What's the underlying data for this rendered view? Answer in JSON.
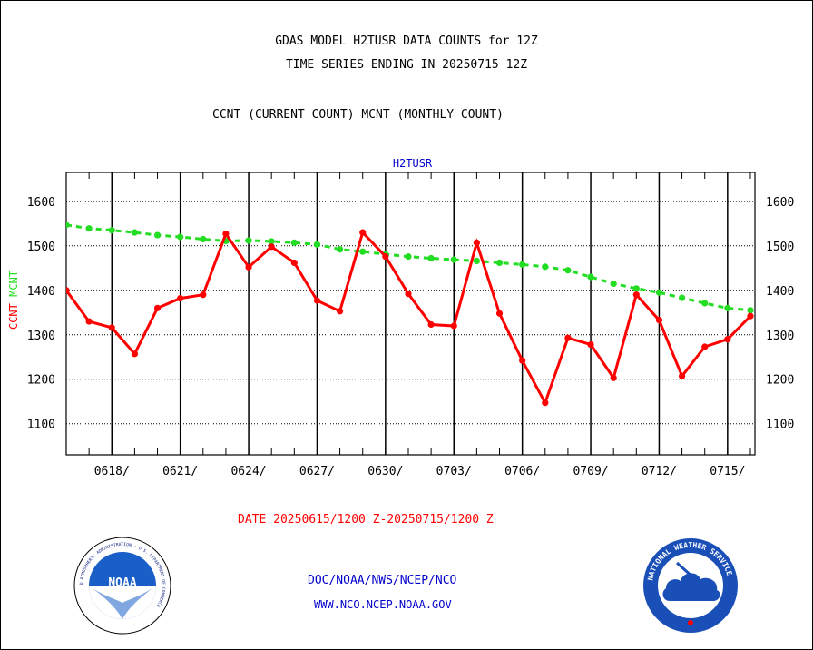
{
  "titles": {
    "line1": "GDAS MODEL H2TUSR DATA COUNTS for 12Z",
    "line2": "TIME SERIES ENDING IN 20250715 12Z",
    "line3": "CCNT (CURRENT COUNT) MCNT (MONTHLY COUNT)"
  },
  "date_range": "DATE 20250615/1200 Z-20250715/1200 Z",
  "footer": {
    "org": "DOC/NOAA/NWS/NCEP/NCO",
    "url": "WWW.NCO.NCEP.NOAA.GOV"
  },
  "logos": {
    "noaa_text": "NOAA",
    "noaa_ring": "NATIONAL OCEANIC AND ATMOSPHERIC ADMINISTRATION · U.S. DEPARTMENT OF COMMERCE",
    "nws_ring": "NATIONAL WEATHER SERVICE"
  },
  "colors": {
    "ccnt": "#ff0000",
    "mcnt": "#22dd22",
    "title_blue": "#0000cc",
    "grid": "#000000"
  },
  "chart_data": {
    "type": "line",
    "title": "H2TUSR",
    "ylabel_parts": [
      {
        "text": "CCNT",
        "color": "#ff0000"
      },
      {
        "text": "MCNT",
        "color": "#22dd22"
      }
    ],
    "ylim": [
      1030,
      1665
    ],
    "yticks": [
      1100,
      1200,
      1300,
      1400,
      1500,
      1600
    ],
    "xlim": [
      0,
      30.2
    ],
    "xtick_labels": [
      {
        "x": 2,
        "label": "0618/"
      },
      {
        "x": 5,
        "label": "0621/"
      },
      {
        "x": 8,
        "label": "0624/"
      },
      {
        "x": 11,
        "label": "0627/"
      },
      {
        "x": 14,
        "label": "0630/"
      },
      {
        "x": 17,
        "label": "0703/"
      },
      {
        "x": 20,
        "label": "0706/"
      },
      {
        "x": 23,
        "label": "0709/"
      },
      {
        "x": 26,
        "label": "0712/"
      },
      {
        "x": 29,
        "label": "0715/"
      }
    ],
    "series": [
      {
        "name": "CCNT",
        "color": "#ff0000",
        "x": [
          0,
          1,
          2,
          3,
          4,
          5,
          6,
          7,
          8,
          9,
          10,
          11,
          12,
          13,
          14,
          15,
          16,
          17,
          18,
          19,
          20,
          21,
          22,
          23,
          24,
          25,
          26,
          27,
          28,
          29,
          30
        ],
        "values": [
          1400,
          1330,
          1316,
          1257,
          1360,
          1382,
          1390,
          1527,
          1452,
          1498,
          1462,
          1377,
          1353,
          1530,
          1476,
          1392,
          1323,
          1320,
          1507,
          1348,
          1242,
          1147,
          1293,
          1278,
          1203,
          1390,
          1333,
          1207,
          1273,
          1290,
          1342
        ]
      },
      {
        "name": "MCNT",
        "color": "#22dd22",
        "x": [
          0,
          1,
          2,
          3,
          4,
          5,
          6,
          7,
          8,
          9,
          10,
          11,
          12,
          13,
          14,
          15,
          16,
          17,
          18,
          19,
          20,
          21,
          22,
          23,
          24,
          25,
          26,
          27,
          28,
          29,
          30
        ],
        "values": [
          1547,
          1539,
          1535,
          1530,
          1524,
          1520,
          1515,
          1511,
          1512,
          1510,
          1507,
          1503,
          1492,
          1487,
          1481,
          1476,
          1472,
          1469,
          1466,
          1462,
          1458,
          1453,
          1445,
          1430,
          1415,
          1404,
          1395,
          1383,
          1371,
          1360,
          1355
        ]
      }
    ]
  }
}
